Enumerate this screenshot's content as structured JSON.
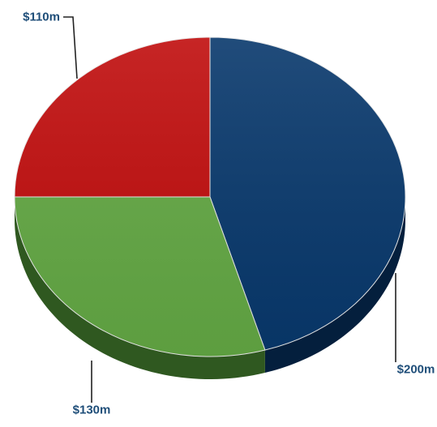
{
  "chart_data": {
    "type": "pie",
    "style": "3d",
    "slices": [
      {
        "label": "$200m",
        "value": 200,
        "color": "#08386C",
        "side_color": "#041F3D"
      },
      {
        "label": "$130m",
        "value": 130,
        "color": "#63A844",
        "side_color": "#2F5820"
      },
      {
        "label": "$110m",
        "value": 110,
        "color": "#C00D0D",
        "side_color": "#6E0707"
      }
    ],
    "label_color": "#1F4E79",
    "title": "",
    "legend": "none"
  }
}
